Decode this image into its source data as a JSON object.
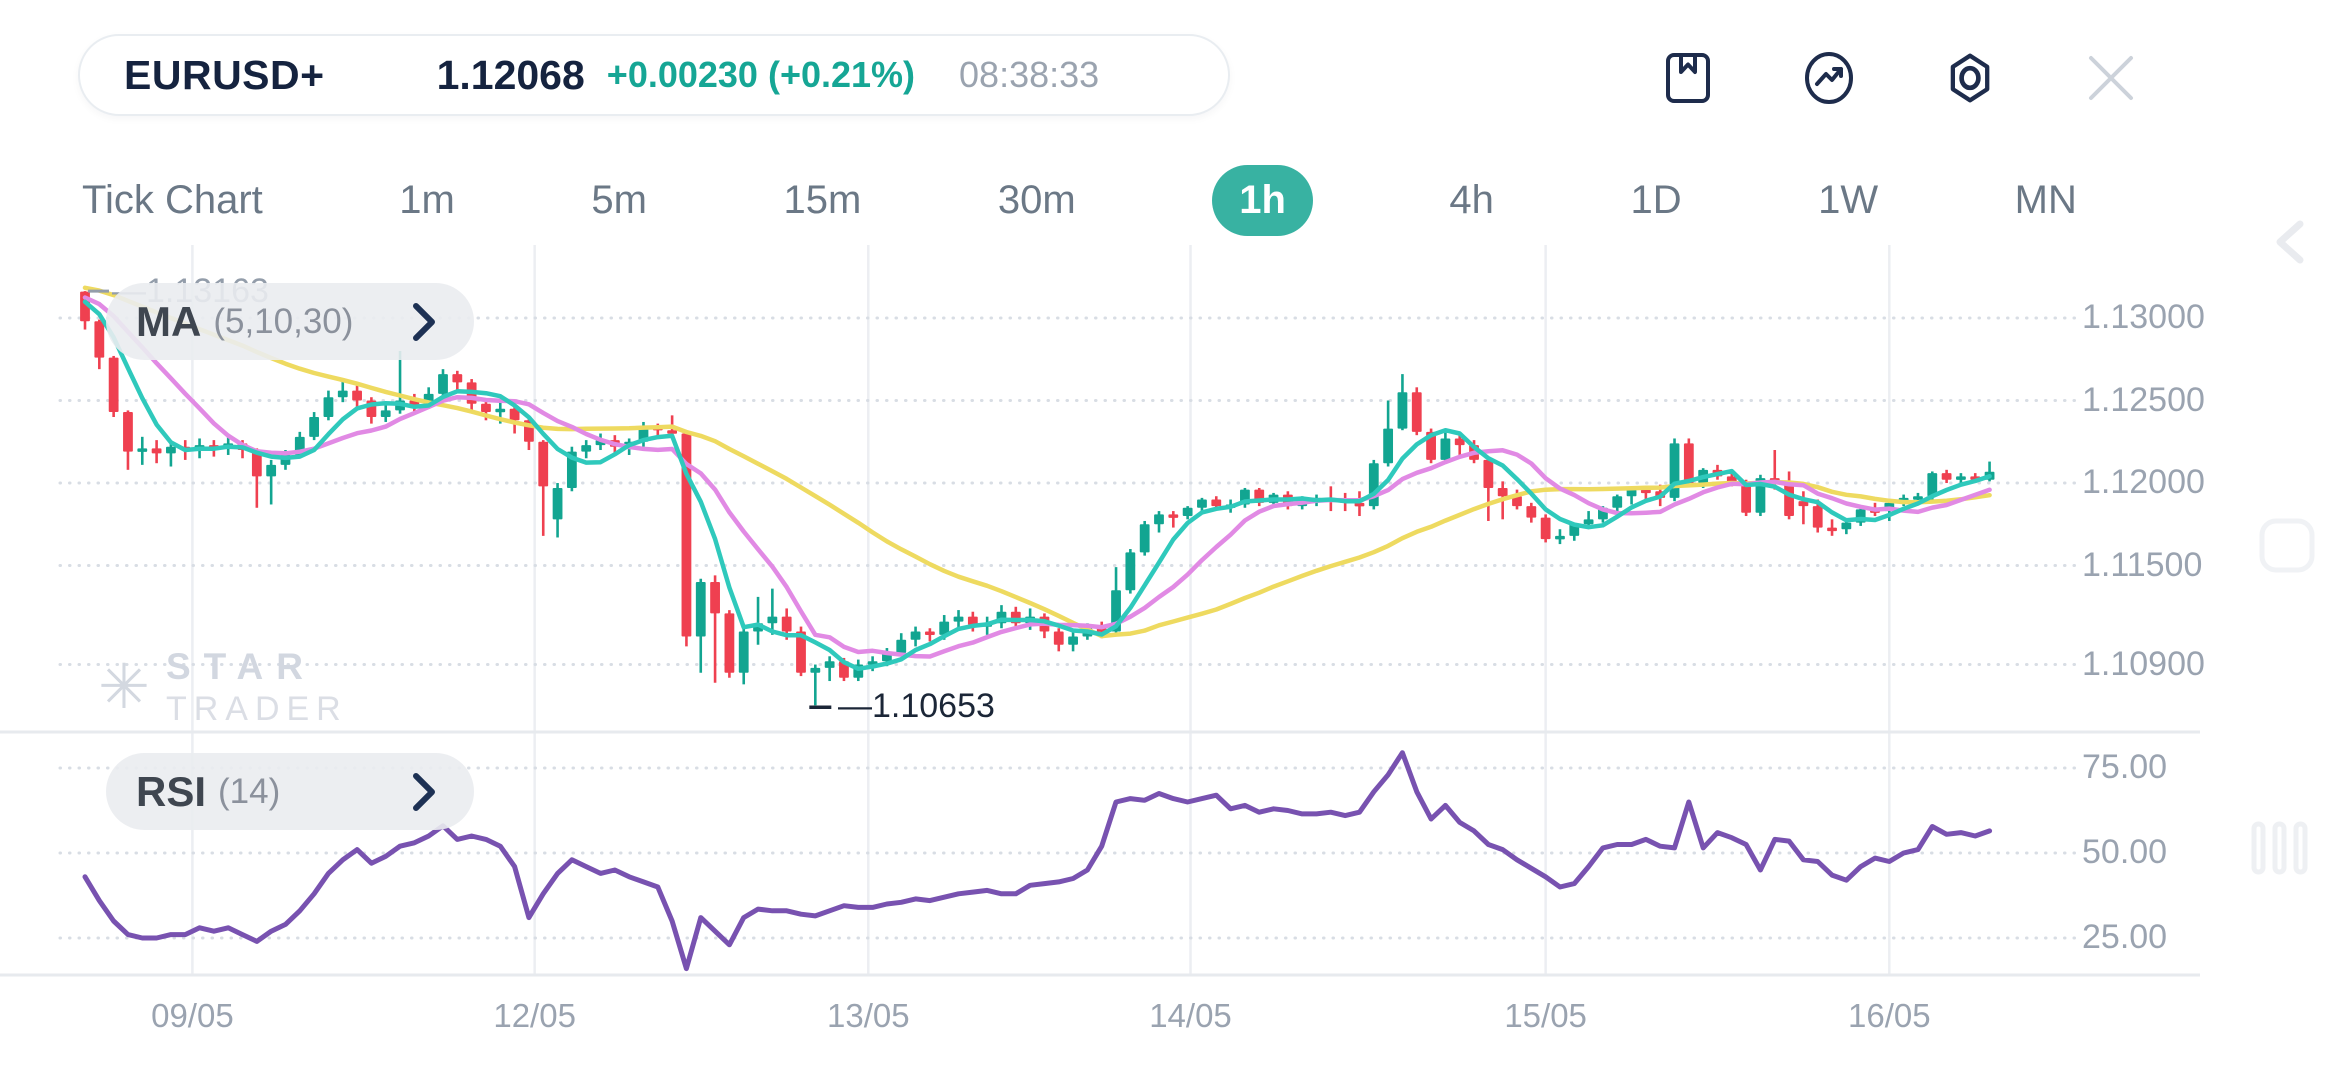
{
  "header": {
    "symbol": "EURUSD+",
    "price": "1.12068",
    "change": "+0.00230 (+0.21%)",
    "time": "08:38:33"
  },
  "toolbar": {
    "icons": [
      "bookmark-icon",
      "indicator-icon",
      "settings-icon",
      "close-icon"
    ]
  },
  "timeframes": {
    "items": [
      "Tick Chart",
      "1m",
      "5m",
      "15m",
      "30m",
      "1h",
      "4h",
      "1D",
      "1W",
      "MN"
    ],
    "active": "1h"
  },
  "indicators": {
    "ma": {
      "label": "MA",
      "params": "(5,10,30)"
    },
    "rsi": {
      "label": "RSI",
      "params": "(14)"
    }
  },
  "annotations": {
    "high_label": "—1.13163",
    "low_label": "—1.10653"
  },
  "watermark": {
    "line1": "STAR",
    "line2": "TRADER"
  },
  "chart_data": {
    "type": "candlestick",
    "symbol": "EURUSD+",
    "timeframe": "1h",
    "legend": [
      {
        "name": "MA5",
        "color": "#2fc9bc"
      },
      {
        "name": "MA10",
        "color": "#e18ae4"
      },
      {
        "name": "MA30",
        "color": "#eeda60"
      },
      {
        "name": "RSI14",
        "color": "#7852b0"
      }
    ],
    "price_ticks": [
      {
        "label": "1.13000",
        "value": 1.13
      },
      {
        "label": "1.12500",
        "value": 1.125
      },
      {
        "label": "1.12000",
        "value": 1.12
      },
      {
        "label": "1.11500",
        "value": 1.115
      },
      {
        "label": "1.10900",
        "value": 1.109
      }
    ],
    "rsi_ticks": [
      {
        "label": "75.00",
        "value": 75
      },
      {
        "label": "50.00",
        "value": 50
      },
      {
        "label": "25.00",
        "value": 25
      }
    ],
    "date_ticks": [
      {
        "label": "09/05",
        "index": 7.5
      },
      {
        "label": "12/05",
        "index": 31.4
      },
      {
        "label": "13/05",
        "index": 54.7
      },
      {
        "label": "14/05",
        "index": 77.2
      },
      {
        "label": "15/05",
        "index": 102
      },
      {
        "label": "16/05",
        "index": 126
      }
    ],
    "high_annotation": {
      "value": 1.13163,
      "index": 0
    },
    "low_annotation": {
      "value": 1.10653,
      "index": 51
    },
    "ma_periods": [
      5,
      10,
      30
    ],
    "ma_warmup_closes": [
      1.1326,
      1.13255,
      1.1325,
      1.13245,
      1.1324,
      1.13235,
      1.1323,
      1.13225,
      1.1322,
      1.13215,
      1.1321,
      1.13205,
      1.132,
      1.13195,
      1.1319,
      1.13185,
      1.1318,
      1.13175,
      1.1317,
      1.13165,
      1.1316,
      1.13155,
      1.1315,
      1.13145,
      1.1314,
      1.13135,
      1.1313,
      1.13125,
      1.1312
    ],
    "candles": [
      [
        1.1316,
        1.13163,
        1.1293,
        1.1298
      ],
      [
        1.1298,
        1.1299,
        1.1269,
        1.1276
      ],
      [
        1.1276,
        1.1277,
        1.124,
        1.1243
      ],
      [
        1.1243,
        1.1244,
        1.1208,
        1.1219
      ],
      [
        1.1219,
        1.1228,
        1.1211,
        1.1221
      ],
      [
        1.1221,
        1.1226,
        1.1212,
        1.1218
      ],
      [
        1.1218,
        1.1226,
        1.121,
        1.1222
      ],
      [
        1.1222,
        1.1226,
        1.1214,
        1.122
      ],
      [
        1.122,
        1.1227,
        1.1215,
        1.1223
      ],
      [
        1.1223,
        1.1226,
        1.1216,
        1.1221
      ],
      [
        1.1221,
        1.1228,
        1.1217,
        1.1224
      ],
      [
        1.1224,
        1.1226,
        1.1215,
        1.122
      ],
      [
        1.122,
        1.1221,
        1.1185,
        1.1204
      ],
      [
        1.1204,
        1.1214,
        1.1187,
        1.1211
      ],
      [
        1.1211,
        1.122,
        1.1208,
        1.1217
      ],
      [
        1.1217,
        1.1231,
        1.1215,
        1.1228
      ],
      [
        1.1228,
        1.1243,
        1.1226,
        1.124
      ],
      [
        1.124,
        1.1256,
        1.1238,
        1.1252
      ],
      [
        1.1252,
        1.1262,
        1.1249,
        1.1256
      ],
      [
        1.1256,
        1.1259,
        1.1246,
        1.125
      ],
      [
        1.125,
        1.1252,
        1.1236,
        1.124
      ],
      [
        1.124,
        1.1248,
        1.1237,
        1.1244
      ],
      [
        1.1244,
        1.128,
        1.1242,
        1.125
      ],
      [
        1.125,
        1.1254,
        1.1243,
        1.1247
      ],
      [
        1.1247,
        1.1258,
        1.1245,
        1.1254
      ],
      [
        1.1254,
        1.1269,
        1.1252,
        1.1266
      ],
      [
        1.1266,
        1.1268,
        1.1256,
        1.1261
      ],
      [
        1.1261,
        1.1263,
        1.1244,
        1.1248
      ],
      [
        1.1248,
        1.1251,
        1.1238,
        1.1243
      ],
      [
        1.1243,
        1.1249,
        1.1236,
        1.1245
      ],
      [
        1.1245,
        1.1247,
        1.123,
        1.1238
      ],
      [
        1.1238,
        1.124,
        1.122,
        1.1225
      ],
      [
        1.1225,
        1.1226,
        1.1168,
        1.1198
      ],
      [
        1.1178,
        1.12,
        1.1167,
        1.1197
      ],
      [
        1.1197,
        1.1222,
        1.1195,
        1.1219
      ],
      [
        1.1219,
        1.1226,
        1.1215,
        1.1223
      ],
      [
        1.1223,
        1.123,
        1.122,
        1.1226
      ],
      [
        1.1226,
        1.1229,
        1.1218,
        1.1222
      ],
      [
        1.1222,
        1.1227,
        1.1217,
        1.1225
      ],
      [
        1.1225,
        1.1237,
        1.1222,
        1.1234
      ],
      [
        1.1234,
        1.1236,
        1.1229,
        1.1232
      ],
      [
        1.1232,
        1.1241,
        1.1228,
        1.123
      ],
      [
        1.123,
        1.1231,
        1.1101,
        1.1107
      ],
      [
        1.1107,
        1.1142,
        1.1085,
        1.114
      ],
      [
        1.114,
        1.1144,
        1.1079,
        1.1121
      ],
      [
        1.1121,
        1.1123,
        1.1082,
        1.1085
      ],
      [
        1.1085,
        1.1112,
        1.1078,
        1.111
      ],
      [
        1.111,
        1.1131,
        1.1102,
        1.1115
      ],
      [
        1.1115,
        1.1136,
        1.1108,
        1.1119
      ],
      [
        1.1119,
        1.1124,
        1.1105,
        1.111
      ],
      [
        1.111,
        1.1113,
        1.1083,
        1.1085
      ],
      [
        1.1085,
        1.109,
        1.10653,
        1.1088
      ],
      [
        1.1088,
        1.1095,
        1.108,
        1.1092
      ],
      [
        1.1092,
        1.1094,
        1.108,
        1.1082
      ],
      [
        1.1082,
        1.1093,
        1.108,
        1.109
      ],
      [
        1.109,
        1.1095,
        1.1086,
        1.1092
      ],
      [
        1.1092,
        1.11,
        1.1089,
        1.1097
      ],
      [
        1.1097,
        1.1109,
        1.1095,
        1.1105
      ],
      [
        1.1105,
        1.1113,
        1.1101,
        1.111
      ],
      [
        1.111,
        1.1112,
        1.1104,
        1.1108
      ],
      [
        1.1108,
        1.112,
        1.1105,
        1.1116
      ],
      [
        1.1116,
        1.1123,
        1.1112,
        1.1119
      ],
      [
        1.1119,
        1.1122,
        1.111,
        1.1114
      ],
      [
        1.1114,
        1.1119,
        1.1108,
        1.1115
      ],
      [
        1.1115,
        1.1126,
        1.1112,
        1.1122
      ],
      [
        1.1122,
        1.1125,
        1.1112,
        1.1115
      ],
      [
        1.1115,
        1.1124,
        1.1111,
        1.1119
      ],
      [
        1.1119,
        1.1121,
        1.1106,
        1.111
      ],
      [
        1.111,
        1.1112,
        1.1098,
        1.1102
      ],
      [
        1.1102,
        1.111,
        1.1098,
        1.1107
      ],
      [
        1.1107,
        1.1115,
        1.1105,
        1.1112
      ],
      [
        1.1112,
        1.1116,
        1.1106,
        1.111
      ],
      [
        1.111,
        1.1149,
        1.1108,
        1.1135
      ],
      [
        1.1135,
        1.116,
        1.1133,
        1.1158
      ],
      [
        1.1158,
        1.1177,
        1.1156,
        1.1175
      ],
      [
        1.1175,
        1.1183,
        1.117,
        1.1181
      ],
      [
        1.1181,
        1.1183,
        1.1173,
        1.118
      ],
      [
        1.118,
        1.1186,
        1.1178,
        1.1185
      ],
      [
        1.1185,
        1.1191,
        1.1183,
        1.119
      ],
      [
        1.119,
        1.1192,
        1.1184,
        1.1186
      ],
      [
        1.1186,
        1.119,
        1.1182,
        1.1187
      ],
      [
        1.1187,
        1.1197,
        1.1185,
        1.1196
      ],
      [
        1.1196,
        1.1197,
        1.1186,
        1.1188
      ],
      [
        1.1188,
        1.1194,
        1.1185,
        1.1193
      ],
      [
        1.1193,
        1.1195,
        1.1184,
        1.1186
      ],
      [
        1.1186,
        1.1192,
        1.1184,
        1.119
      ],
      [
        1.119,
        1.1193,
        1.1186,
        1.1191
      ],
      [
        1.1191,
        1.1198,
        1.1183,
        1.119
      ],
      [
        1.119,
        1.1194,
        1.1183,
        1.1188
      ],
      [
        1.1188,
        1.1195,
        1.118,
        1.1186
      ],
      [
        1.1186,
        1.1214,
        1.1184,
        1.1212
      ],
      [
        1.1212,
        1.125,
        1.121,
        1.1233
      ],
      [
        1.1233,
        1.1266,
        1.1232,
        1.1255
      ],
      [
        1.1255,
        1.1258,
        1.1229,
        1.1231
      ],
      [
        1.1231,
        1.1233,
        1.1212,
        1.1214
      ],
      [
        1.1214,
        1.1233,
        1.1212,
        1.1227
      ],
      [
        1.1227,
        1.1231,
        1.1217,
        1.1223
      ],
      [
        1.1223,
        1.1226,
        1.1212,
        1.1214
      ],
      [
        1.1214,
        1.1215,
        1.1177,
        1.1197
      ],
      [
        1.1197,
        1.1201,
        1.1178,
        1.1192
      ],
      [
        1.1192,
        1.1196,
        1.1184,
        1.1186
      ],
      [
        1.1186,
        1.1188,
        1.1176,
        1.1179
      ],
      [
        1.1179,
        1.1181,
        1.1164,
        1.1166
      ],
      [
        1.1166,
        1.1172,
        1.1163,
        1.1168
      ],
      [
        1.1168,
        1.1176,
        1.1165,
        1.1175
      ],
      [
        1.1175,
        1.1183,
        1.1173,
        1.1178
      ],
      [
        1.1178,
        1.1186,
        1.1176,
        1.1185
      ],
      [
        1.1185,
        1.1193,
        1.1179,
        1.1192
      ],
      [
        1.1192,
        1.1197,
        1.1187,
        1.1196
      ],
      [
        1.1196,
        1.1198,
        1.119,
        1.1195
      ],
      [
        1.1195,
        1.1199,
        1.1186,
        1.1191
      ],
      [
        1.1191,
        1.1227,
        1.1189,
        1.1224
      ],
      [
        1.1224,
        1.1227,
        1.1199,
        1.12
      ],
      [
        1.12,
        1.1209,
        1.1197,
        1.1208
      ],
      [
        1.1208,
        1.1211,
        1.1202,
        1.1204
      ],
      [
        1.1204,
        1.1207,
        1.1198,
        1.12
      ],
      [
        1.12,
        1.1202,
        1.118,
        1.1182
      ],
      [
        1.1182,
        1.1205,
        1.118,
        1.1203
      ],
      [
        1.1203,
        1.122,
        1.1196,
        1.12
      ],
      [
        1.12,
        1.1207,
        1.1178,
        1.118
      ],
      [
        1.1189,
        1.1195,
        1.1175,
        1.1186
      ],
      [
        1.1186,
        1.119,
        1.117,
        1.1173
      ],
      [
        1.1173,
        1.1178,
        1.1168,
        1.1172
      ],
      [
        1.1172,
        1.1178,
        1.1169,
        1.1176
      ],
      [
        1.1176,
        1.1186,
        1.1174,
        1.1184
      ],
      [
        1.1184,
        1.1188,
        1.118,
        1.1183
      ],
      [
        1.1183,
        1.119,
        1.1177,
        1.1188
      ],
      [
        1.1188,
        1.1193,
        1.1186,
        1.1191
      ],
      [
        1.1191,
        1.1194,
        1.1188,
        1.1192
      ],
      [
        1.1192,
        1.1207,
        1.1189,
        1.1206
      ],
      [
        1.1206,
        1.1208,
        1.12,
        1.1202
      ],
      [
        1.1202,
        1.1206,
        1.1198,
        1.1204
      ],
      [
        1.1204,
        1.1206,
        1.12,
        1.1202
      ],
      [
        1.1202,
        1.1213,
        1.1201,
        1.12068
      ]
    ],
    "rsi": [
      43,
      36,
      30,
      26,
      25,
      25,
      26,
      26,
      28,
      27,
      28,
      26,
      24,
      27,
      29,
      33,
      38,
      44,
      48,
      51,
      47,
      49,
      52,
      53,
      55,
      58,
      54,
      55,
      54,
      52,
      46,
      31,
      38,
      44,
      48,
      46,
      44,
      45,
      43,
      41.5,
      40,
      30,
      16,
      31,
      27,
      23,
      31,
      33.5,
      33,
      33,
      32,
      31.5,
      33,
      34.5,
      34,
      34,
      35,
      35.5,
      36.5,
      36,
      37,
      38,
      38.5,
      39,
      38,
      38,
      40.5,
      41,
      41.5,
      42.5,
      45,
      52,
      65,
      66,
      65.5,
      67.5,
      66,
      65,
      66,
      67,
      63,
      64,
      62,
      63,
      62.5,
      61.5,
      61.5,
      62,
      61,
      62,
      68,
      73,
      79.5,
      68,
      60,
      64,
      59,
      56.5,
      52.5,
      51,
      48,
      45.5,
      43,
      40,
      41,
      46,
      51.5,
      52.5,
      52.5,
      54,
      52,
      51.5,
      65,
      51.5,
      56,
      54.5,
      52.5,
      45,
      54,
      53.5,
      48,
      47.5,
      43.5,
      42,
      46,
      48.5,
      47.5,
      50,
      51,
      57.8,
      55.5,
      56,
      55,
      56.5
    ],
    "colors": {
      "up": "#12a591",
      "down": "#ef4050",
      "ma5": "#2fc9bc",
      "ma10": "#e18ae4",
      "ma30": "#eeda60",
      "rsi": "#7852b0",
      "grid": "#eceef2",
      "grid_dotted": "#d8dde4",
      "axis_text": "#9aa3b0",
      "divider": "#e7eaee",
      "accent": "#38b2a2",
      "navy": "#15233f"
    }
  }
}
